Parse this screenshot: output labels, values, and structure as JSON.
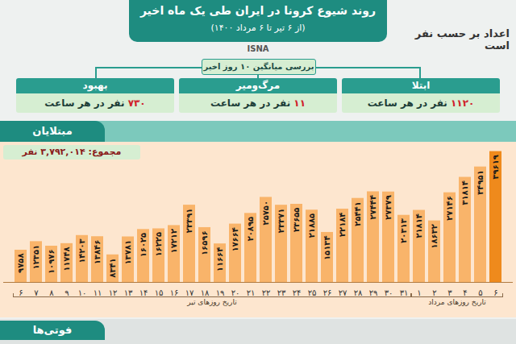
{
  "header": {
    "title": "روند شیوع کرونا در ایران طی یک ماه اخیر",
    "subtitle": "(از ۶ تیر تا ۶ مرداد ۱۴۰۰)",
    "note": "اعداد بر حسب نفر است",
    "source": "ISNA",
    "average_title": "بررسی میانگین ۱۰ روز اخیر",
    "boxes": [
      {
        "label": "بهبود",
        "value": "۷۳۰",
        "unit": "نفر در هر ساعت"
      },
      {
        "label": "مرگ‌ومیر",
        "value": "۱۱",
        "unit": "نفر در هر ساعت"
      },
      {
        "label": "ابتلا",
        "value": "۱۱۲۰",
        "unit": "نفر در هر ساعت"
      }
    ]
  },
  "chart_data": {
    "type": "bar",
    "title": "مبتلایان",
    "subtitle": "مجموع: ۳,۷۹۲,۰۱۴ نفر",
    "categories": [
      "۶",
      "۷",
      "۸",
      "۹",
      "۱۰",
      "۱۱",
      "۱۲",
      "۱۳",
      "۱۴",
      "۱۵",
      "۱۶",
      "۱۷",
      "۱۸",
      "۱۹",
      "۲۰",
      "۲۱",
      "۲۲",
      "۲۳",
      "۲۴",
      "۲۵",
      "۲۶",
      "۲۷",
      "۲۸",
      "۲۹",
      "۳۰",
      "۳۱",
      "۱",
      "۲",
      "۳",
      "۴",
      "۵",
      "۶"
    ],
    "groups": [
      "تاریخ روزهای تیر",
      "تاریخ روزهای تیر",
      "تاریخ روزهای تیر",
      "تاریخ روزهای تیر",
      "تاریخ روزهای تیر",
      "تاریخ روزهای تیر",
      "تاریخ روزهای تیر",
      "تاریخ روزهای تیر",
      "تاریخ روزهای تیر",
      "تاریخ روزهای تیر",
      "تاریخ روزهای تیر",
      "تاریخ روزهای تیر",
      "تاریخ روزهای تیر",
      "تاریخ روزهای تیر",
      "تاریخ روزهای تیر",
      "تاریخ روزهای تیر",
      "تاریخ روزهای تیر",
      "تاریخ روزهای تیر",
      "تاریخ روزهای تیر",
      "تاریخ روزهای تیر",
      "تاریخ روزهای تیر",
      "تاریخ روزهای تیر",
      "تاریخ روزهای تیر",
      "تاریخ روزهای تیر",
      "تاریخ روزهای تیر",
      "تاریخ روزهای تیر",
      "تاریخ روزهای مرداد",
      "تاریخ روزهای مرداد",
      "تاریخ روزهای مرداد",
      "تاریخ روزهای مرداد",
      "تاریخ روزهای مرداد",
      "تاریخ روزهای مرداد"
    ],
    "values": [
      9758,
      12351,
      10976,
      11748,
      14203,
      13846,
      8341,
      13781,
      16025,
      16225,
      17212,
      23391,
      16596,
      11664,
      17664,
      20895,
      25750,
      23371,
      23655,
      21885,
      15134,
      22184,
      25441,
      27444,
      27379,
      20313,
      21814,
      18632,
      27146,
      31814,
      34951,
      39619
    ],
    "value_labels": [
      "۹۷۵۸",
      "۱۲۳۵۱",
      "۱۰۹۷۶",
      "۱۱۷۴۸",
      "۱۴۲۰۳",
      "۱۳۸۴۶",
      "۸۳۴۱",
      "۱۳۷۸۱",
      "۱۶۰۲۵",
      "۱۶۲۲۵",
      "۱۷۲۱۲",
      "۲۳۳۹۱",
      "۱۶۵۹۶",
      "۱۱۶۶۴",
      "۱۷۶۶۴",
      "۲۰۸۹۵",
      "۲۵۷۵۰",
      "۲۳۳۷۱",
      "۲۳۶۵۵",
      "۲۱۸۸۵",
      "۱۵۱۳۴",
      "۲۲۱۸۴",
      "۲۵۴۴۱",
      "۲۷۴۴۴",
      "۲۷۳۷۹",
      "۲۰۳۱۳",
      "۲۱۸۱۴",
      "۱۸۶۳۲",
      "۲۷۱۴۶",
      "۳۱۸۱۴",
      "۳۴۹۵۱",
      "۳۹۶۱۹"
    ],
    "colors": [
      "#f9b46a",
      "#f9b46a",
      "#f9b46a",
      "#f9b46a",
      "#f9b46a",
      "#f9b46a",
      "#f9b46a",
      "#f9b46a",
      "#f9b46a",
      "#f9b46a",
      "#f9b46a",
      "#f9b46a",
      "#f9b46a",
      "#f9b46a",
      "#f9b46a",
      "#f9b46a",
      "#f9b46a",
      "#f9b46a",
      "#f9b46a",
      "#f9b46a",
      "#f9b46a",
      "#f9b46a",
      "#f9b46a",
      "#f9b46a",
      "#f9b46a",
      "#f9b46a",
      "#f9b46a",
      "#f9b46a",
      "#f9b46a",
      "#f9b46a",
      "#f9b46a",
      "#ef8a1c"
    ],
    "ylim": [
      0,
      40000
    ],
    "tick_labels": "x",
    "data_labels": true,
    "grid": false
  },
  "footer": {
    "title": "فوتی‌ها"
  }
}
